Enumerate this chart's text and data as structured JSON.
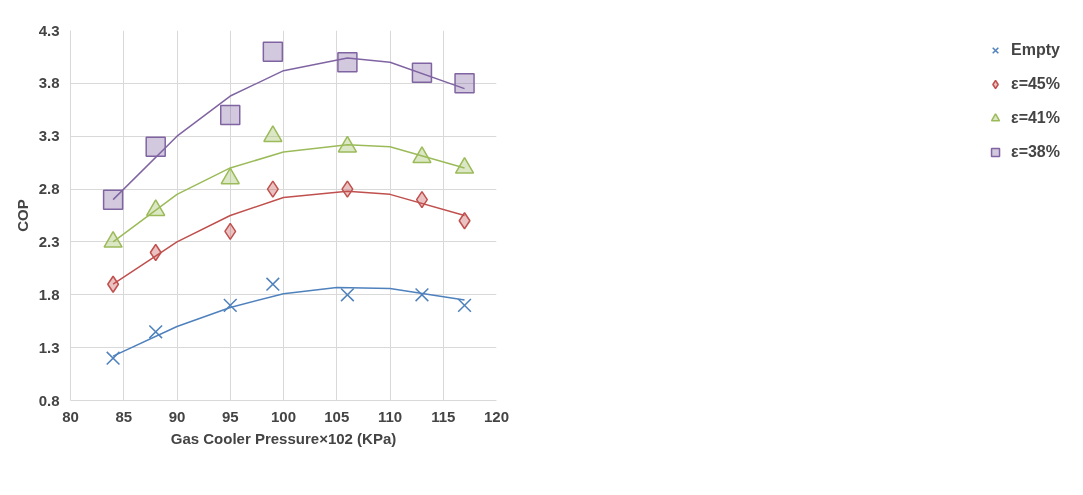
{
  "chart_data": {
    "type": "scatter",
    "xlabel": "Gas Cooler Pressure×102 (KPa)",
    "ylabel": "COP",
    "x": [
      84,
      88,
      95,
      99,
      106,
      113,
      117
    ],
    "xlim": [
      80,
      120
    ],
    "xticks": [
      80,
      85,
      90,
      95,
      100,
      105,
      110,
      115,
      120
    ],
    "ylim": [
      0.8,
      4.3
    ],
    "yticks": [
      0.8,
      1.3,
      1.8,
      2.3,
      2.8,
      3.3,
      3.8,
      4.3
    ],
    "grid": true,
    "legend": "right",
    "series": [
      {
        "name": "Empty",
        "color": "#4f81bd",
        "marker": "cross",
        "values": [
          1.2,
          1.45,
          1.7,
          1.9,
          1.8,
          1.8,
          1.7
        ]
      },
      {
        "name": "ε=45%",
        "color": "#c0504d",
        "marker": "diamond",
        "values": [
          1.9,
          2.2,
          2.4,
          2.8,
          2.8,
          2.7,
          2.5
        ]
      },
      {
        "name": "ε=41%",
        "color": "#9bbb59",
        "marker": "triangle",
        "values": [
          2.3,
          2.6,
          2.9,
          3.3,
          3.2,
          3.1,
          3.0
        ]
      },
      {
        "name": "ε=38%",
        "color": "#8064a2",
        "marker": "square",
        "values": [
          2.7,
          3.2,
          3.5,
          4.1,
          4.0,
          3.9,
          3.8
        ]
      },
      {
        "type": "line",
        "color": "#4f81bd",
        "marker": "none",
        "x": [
          84,
          90,
          95,
          100,
          105,
          110,
          117
        ],
        "values": [
          1.22,
          1.5,
          1.68,
          1.81,
          1.87,
          1.86,
          1.75
        ]
      },
      {
        "type": "line",
        "color": "#c0504d",
        "marker": "none",
        "x": [
          84,
          90,
          95,
          100,
          106,
          110,
          117
        ],
        "values": [
          1.9,
          2.3,
          2.55,
          2.72,
          2.78,
          2.75,
          2.55
        ]
      },
      {
        "type": "line",
        "color": "#9bbb59",
        "marker": "none",
        "x": [
          84,
          90,
          95,
          100,
          106,
          110,
          117
        ],
        "values": [
          2.3,
          2.75,
          3.0,
          3.15,
          3.22,
          3.2,
          3.0
        ]
      },
      {
        "type": "line",
        "color": "#8064a2",
        "marker": "none",
        "x": [
          84,
          90,
          95,
          100,
          106,
          110,
          117
        ],
        "values": [
          2.7,
          3.3,
          3.68,
          3.92,
          4.04,
          4.0,
          3.75
        ]
      }
    ]
  }
}
